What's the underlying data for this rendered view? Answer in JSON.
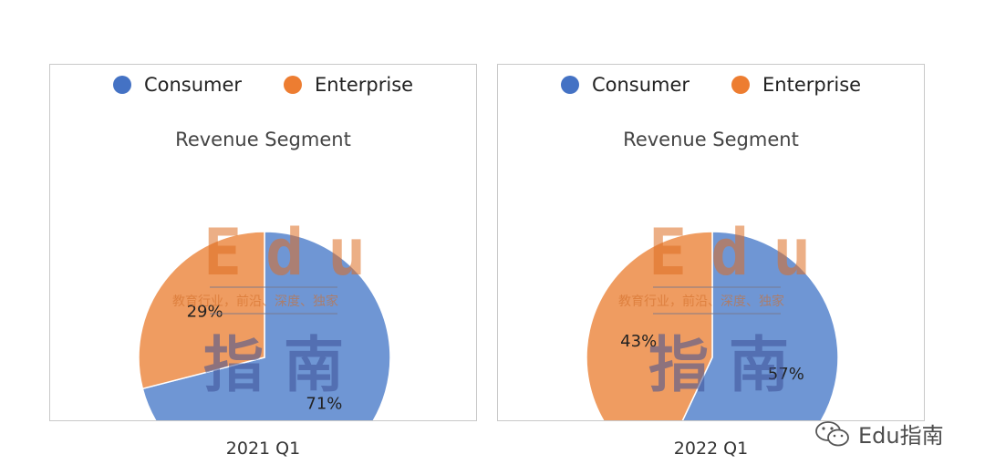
{
  "colors": {
    "consumer": "#6f96d4",
    "enterprise": "#ef9c61",
    "consumer_legend": "#4472c4",
    "enterprise_legend": "#ed7d31"
  },
  "watermark": {
    "latin": "Edu",
    "subtitle": "教育行业，前沿、深度、独家",
    "chinese": "指南"
  },
  "brand": {
    "icon": "wechat-icon",
    "text": "Edu指南"
  },
  "chart_data": [
    {
      "type": "pie",
      "title": "Revenue Segment",
      "caption": "2021 Q1",
      "legend": [
        "Consumer",
        "Enterprise"
      ],
      "legend_position": "top",
      "slices": [
        {
          "name": "Consumer",
          "value": 71,
          "label": "71%"
        },
        {
          "name": "Enterprise",
          "value": 29,
          "label": "29%"
        }
      ]
    },
    {
      "type": "pie",
      "title": "Revenue Segment",
      "caption": "2022 Q1",
      "legend": [
        "Consumer",
        "Enterprise"
      ],
      "legend_position": "top",
      "slices": [
        {
          "name": "Consumer",
          "value": 57,
          "label": "57%"
        },
        {
          "name": "Enterprise",
          "value": 43,
          "label": "43%"
        }
      ]
    }
  ]
}
